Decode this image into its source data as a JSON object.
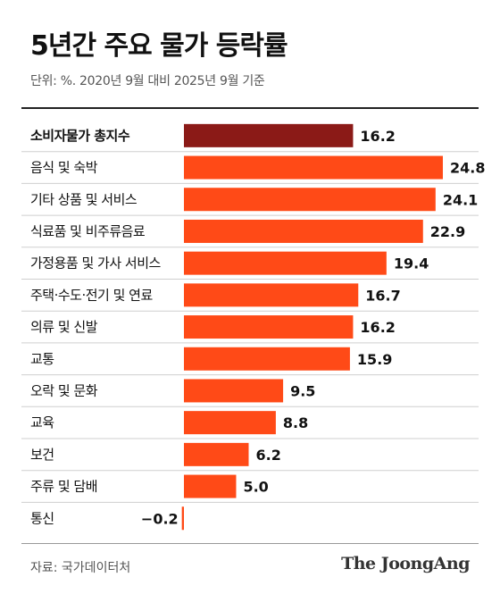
{
  "title": "5년간 주요 물가 등락률",
  "subtitle": "단위: %. 2020년 9월 대비 2025년 9월 기준",
  "source": "자료: 국가데이터처",
  "brand": "The JoongAng",
  "colors": {
    "total_bar": "#8b1a17",
    "bar": "#ff4a17"
  },
  "chart_data": {
    "type": "bar",
    "orientation": "horizontal",
    "title": "5년간 주요 물가 등락률",
    "subtitle": "단위: %. 2020년 9월 대비 2025년 9월 기준",
    "categories": [
      "소비자물가 총지수",
      "음식 및 숙박",
      "기타 상품 및 서비스",
      "식료품 및 비주류음료",
      "가정용품 및 가사 서비스",
      "주택·수도·전기 및 연료",
      "의류 및 신발",
      "교통",
      "오락 및 문화",
      "교육",
      "보건",
      "주류 및 담배",
      "통신"
    ],
    "values": [
      16.2,
      24.8,
      24.1,
      22.9,
      19.4,
      16.7,
      16.2,
      15.9,
      9.5,
      8.8,
      6.2,
      5.0,
      -0.2
    ],
    "value_labels": [
      "16.2",
      "24.8",
      "24.1",
      "22.9",
      "19.4",
      "16.7",
      "16.2",
      "15.9",
      "9.5",
      "8.8",
      "6.2",
      "5.0",
      "−0.2"
    ],
    "highlight_index": 0,
    "xlim": [
      0,
      24.8
    ],
    "grid": false
  }
}
